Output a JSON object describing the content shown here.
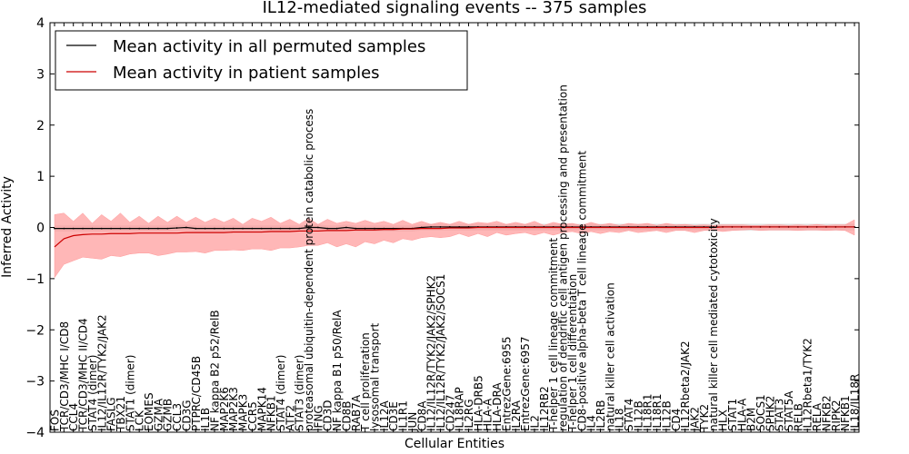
{
  "chart_data": {
    "type": "line",
    "title": "IL12-mediated signaling events -- 375 samples",
    "xlabel": "Cellular Entities",
    "ylabel": "Inferred Activity",
    "ylim": [
      -4,
      4
    ],
    "yticks": [
      -4,
      -3,
      -2,
      -1,
      0,
      1,
      2,
      3,
      4
    ],
    "grid": false,
    "legend_position": "upper-left",
    "legend": [
      {
        "label": "Mean activity in all permuted samples",
        "color": "#000000"
      },
      {
        "label": "Mean activity in patient samples",
        "color": "#cc0000"
      }
    ],
    "colors": {
      "patient": "#cc0000",
      "patient_band": "#ff9999",
      "permuted": "#000000",
      "permuted_band": "#bbbbbb"
    },
    "categories": [
      "FOS",
      "TCR/CD3/MHC I/CD8",
      "CCL4",
      "TCR/CD3/MHC II/CD4",
      "STAT4 (dimer)",
      "IL12/IL12R/TYK2/JAK2",
      "FASLG",
      "TBX21",
      "STAT1 (dimer)",
      "LCK",
      "EOMES",
      "GZMA",
      "GZMB",
      "CCL3",
      "CD3G",
      "PTPRC/CD45B",
      "IL1B",
      "NF kappa B2 p52/RelB",
      "MAP2K6",
      "MAP2K3",
      "MAPK3",
      "CCR5",
      "MAPK14",
      "NFKB1",
      "STAT4 (dimer)",
      "ATF2",
      "STAT3 (dimer)",
      "proteasomal ubiquitin-dependent protein catabolic process",
      "IFNG",
      "CD3D",
      "NF kappa B1 p50/RelA",
      "CD8B",
      "RAB7A",
      "T cell proliferation",
      "lysosomal transport",
      "IL12A",
      "CD3E",
      "IL1R1",
      "JUN",
      "CD8A",
      "IL12/IL12R/TYK2/JAK2/SPHK2",
      "IL12/IL12R/TYK2/JAK2/SOCS1",
      "CD247",
      "IL18RAP",
      "IL2RG",
      "HLA-DRB5",
      "HLA-A",
      "HLA-DRA",
      "EntrezGene:6955",
      "IL2RA",
      "EntrezGene:6957",
      "IL2",
      "IL12RB2",
      "T-helper 1 cell lineage commitment",
      "regulation of dendritic cell antigen processing and presentation",
      "T-helper 1 cell differentiation",
      "CD8-positive alpha-beta T cell lineage commitment",
      "IL4",
      "IL2RB",
      "natural killer cell activation",
      "IL18",
      "STAT4",
      "IL12B",
      "IL18R1",
      "IL18R1",
      "IL12B",
      "CD4",
      "IL12Rbeta2/JAK2",
      "JAK2",
      "TYK2",
      "natural killer cell mediated cytotoxicity",
      "HLX",
      "STAT1",
      "HLA-A",
      "B2M",
      "SOCS1",
      "SPHK2",
      "STAT3",
      "STAT5A",
      "RELB",
      "IL12Rbeta1/TYK2",
      "RELA",
      "NFKB2",
      "RIPK2",
      "NFKB1",
      "IL18/IL18R"
    ],
    "series": [
      {
        "name": "Mean activity in all permuted samples",
        "values": [
          -0.02,
          -0.02,
          -0.02,
          -0.02,
          -0.02,
          -0.02,
          -0.02,
          -0.02,
          -0.02,
          -0.02,
          -0.02,
          -0.02,
          -0.02,
          -0.01,
          0.0,
          -0.02,
          -0.02,
          -0.02,
          -0.02,
          -0.02,
          -0.02,
          -0.02,
          -0.02,
          -0.02,
          -0.02,
          -0.02,
          -0.02,
          0.0,
          0.0,
          -0.02,
          -0.02,
          0.0,
          -0.02,
          -0.02,
          -0.02,
          -0.02,
          -0.02,
          -0.02,
          -0.02,
          0.0,
          0.01,
          0.01,
          0.01,
          0.01,
          0.01,
          0.01,
          0.01,
          0.01,
          0.01,
          0.01,
          0.01,
          0.01,
          0.01,
          0.01,
          0.01,
          0.01,
          0.01,
          0.01,
          0.01,
          0.01,
          0.01,
          0.01,
          0.01,
          0.01,
          0.01,
          0.01,
          0.01,
          0.01,
          0.01,
          0.01,
          0.01,
          0.01,
          0.01,
          0.01,
          0.01,
          0.01,
          0.01,
          0.01,
          0.01,
          0.01,
          0.01,
          0.01,
          0.01,
          0.01,
          0.01,
          0.01
        ],
        "lower": [
          -0.08,
          -0.08,
          -0.08,
          -0.08,
          -0.08,
          -0.08,
          -0.08,
          -0.08,
          -0.08,
          -0.08,
          -0.08,
          -0.08,
          -0.08,
          -0.07,
          -0.06,
          -0.08,
          -0.08,
          -0.08,
          -0.08,
          -0.08,
          -0.08,
          -0.08,
          -0.08,
          -0.08,
          -0.08,
          -0.08,
          -0.08,
          -0.06,
          -0.06,
          -0.08,
          -0.08,
          -0.06,
          -0.08,
          -0.08,
          -0.08,
          -0.08,
          -0.08,
          -0.08,
          -0.08,
          -0.06,
          -0.06,
          -0.06,
          -0.06,
          -0.06,
          -0.06,
          -0.06,
          -0.06,
          -0.06,
          -0.06,
          -0.06,
          -0.06,
          -0.06,
          -0.06,
          -0.06,
          -0.06,
          -0.06,
          -0.06,
          -0.06,
          -0.06,
          -0.06,
          -0.06,
          -0.06,
          -0.06,
          -0.06,
          -0.06,
          -0.06,
          -0.06,
          -0.06,
          -0.06,
          -0.06,
          -0.06,
          -0.06,
          -0.06,
          -0.06,
          -0.06,
          -0.06,
          -0.06,
          -0.06,
          -0.06,
          -0.06,
          -0.06,
          -0.06,
          -0.06,
          -0.06,
          -0.06,
          -0.06
        ],
        "upper": [
          0.04,
          0.04,
          0.04,
          0.04,
          0.04,
          0.04,
          0.04,
          0.04,
          0.04,
          0.04,
          0.04,
          0.04,
          0.04,
          0.05,
          0.06,
          0.04,
          0.04,
          0.04,
          0.04,
          0.04,
          0.04,
          0.04,
          0.04,
          0.04,
          0.04,
          0.04,
          0.04,
          0.06,
          0.06,
          0.04,
          0.04,
          0.06,
          0.04,
          0.04,
          0.04,
          0.04,
          0.04,
          0.04,
          0.04,
          0.06,
          0.07,
          0.07,
          0.07,
          0.07,
          0.07,
          0.07,
          0.07,
          0.07,
          0.07,
          0.07,
          0.07,
          0.07,
          0.07,
          0.07,
          0.07,
          0.07,
          0.07,
          0.07,
          0.07,
          0.07,
          0.07,
          0.07,
          0.07,
          0.07,
          0.07,
          0.07,
          0.07,
          0.07,
          0.07,
          0.07,
          0.07,
          0.07,
          0.07,
          0.07,
          0.07,
          0.07,
          0.07,
          0.07,
          0.07,
          0.07,
          0.07,
          0.07,
          0.07,
          0.07,
          0.07,
          0.07
        ]
      },
      {
        "name": "Mean activity in patient samples",
        "values": [
          -0.38,
          -0.22,
          -0.16,
          -0.14,
          -0.13,
          -0.13,
          -0.12,
          -0.12,
          -0.12,
          -0.11,
          -0.11,
          -0.11,
          -0.11,
          -0.11,
          -0.1,
          -0.1,
          -0.1,
          -0.1,
          -0.1,
          -0.09,
          -0.09,
          -0.09,
          -0.09,
          -0.08,
          -0.08,
          -0.08,
          -0.07,
          -0.07,
          -0.07,
          -0.06,
          -0.06,
          -0.06,
          -0.05,
          -0.05,
          -0.05,
          -0.04,
          -0.04,
          -0.03,
          -0.03,
          -0.02,
          -0.02,
          -0.02,
          -0.01,
          -0.01,
          -0.01,
          0.0,
          0.0,
          0.0,
          0.0,
          0.0,
          0.0,
          0.0,
          0.0,
          0.0,
          0.0,
          0.0,
          0.0,
          0.0,
          0.0,
          0.0,
          0.0,
          0.0,
          0.0,
          0.0,
          0.0,
          0.0,
          0.0,
          0.0,
          0.0,
          0.0,
          0.0,
          0.01,
          0.01,
          0.01,
          0.01,
          0.01,
          0.01,
          0.01,
          0.01,
          0.01,
          0.01,
          0.01,
          0.01,
          0.01,
          0.01,
          0.01
        ],
        "lower": [
          -0.98,
          -0.72,
          -0.65,
          -0.58,
          -0.6,
          -0.62,
          -0.55,
          -0.57,
          -0.52,
          -0.5,
          -0.5,
          -0.55,
          -0.52,
          -0.48,
          -0.48,
          -0.47,
          -0.5,
          -0.45,
          -0.45,
          -0.44,
          -0.45,
          -0.42,
          -0.42,
          -0.45,
          -0.4,
          -0.4,
          -0.38,
          -0.35,
          -0.35,
          -0.3,
          -0.38,
          -0.32,
          -0.38,
          -0.28,
          -0.32,
          -0.25,
          -0.3,
          -0.22,
          -0.25,
          -0.2,
          -0.18,
          -0.2,
          -0.18,
          -0.12,
          -0.18,
          -0.12,
          -0.18,
          -0.1,
          -0.15,
          -0.12,
          -0.1,
          -0.15,
          -0.1,
          -0.15,
          -0.1,
          -0.08,
          -0.12,
          -0.08,
          -0.12,
          -0.08,
          -0.1,
          -0.06,
          -0.1,
          -0.08,
          -0.06,
          -0.1,
          -0.06,
          -0.06,
          -0.1,
          -0.06,
          -0.05,
          -0.08,
          -0.06,
          -0.05,
          -0.04,
          -0.06,
          -0.05,
          -0.05,
          -0.05,
          -0.06,
          -0.05,
          -0.05,
          -0.06,
          -0.05,
          -0.06,
          -0.15
        ],
        "upper": [
          0.25,
          0.28,
          0.12,
          0.28,
          0.08,
          0.25,
          0.12,
          0.28,
          0.1,
          0.22,
          0.08,
          0.22,
          0.1,
          0.22,
          0.1,
          0.2,
          0.1,
          0.18,
          0.1,
          0.18,
          0.06,
          0.18,
          0.12,
          0.2,
          0.08,
          0.16,
          0.06,
          0.18,
          0.06,
          0.16,
          0.08,
          0.12,
          0.08,
          0.14,
          0.08,
          0.12,
          0.06,
          0.14,
          0.06,
          0.12,
          0.06,
          0.1,
          0.06,
          0.12,
          0.06,
          0.1,
          0.08,
          0.12,
          0.06,
          0.1,
          0.06,
          0.12,
          0.04,
          0.1,
          0.06,
          0.08,
          0.04,
          0.1,
          0.05,
          0.08,
          0.04,
          0.08,
          0.06,
          0.08,
          0.04,
          0.08,
          0.05,
          0.06,
          0.04,
          0.05,
          0.04,
          0.05,
          0.05,
          0.05,
          0.04,
          0.04,
          0.05,
          0.05,
          0.04,
          0.05,
          0.04,
          0.06,
          0.04,
          0.05,
          0.05,
          0.15
        ]
      }
    ]
  }
}
